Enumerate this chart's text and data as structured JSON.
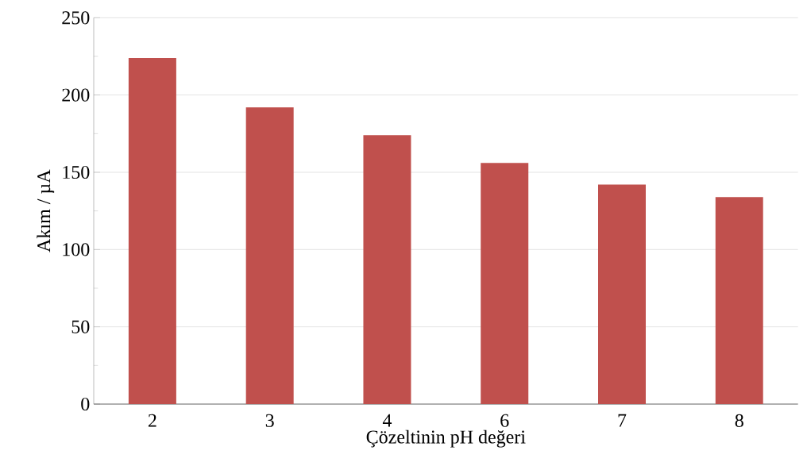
{
  "chart_data": {
    "type": "bar",
    "xlabel": "Çözeltinin pH değeri",
    "ylabel": "Akım / µA",
    "categories": [
      "2",
      "3",
      "4",
      "6",
      "7",
      "8"
    ],
    "values": [
      224,
      192,
      174,
      156,
      142,
      134
    ],
    "color": "#c0504d",
    "ylim": [
      0,
      250
    ],
    "yticks": [
      0,
      {
        "value": 25,
        "label": null
      },
      50,
      {
        "value": 75,
        "label": null
      },
      100,
      {
        "value": 125,
        "label": null
      },
      150,
      {
        "value": 175,
        "label": null
      },
      200,
      {
        "value": 225,
        "label": null
      },
      250
    ],
    "grid": "y"
  }
}
